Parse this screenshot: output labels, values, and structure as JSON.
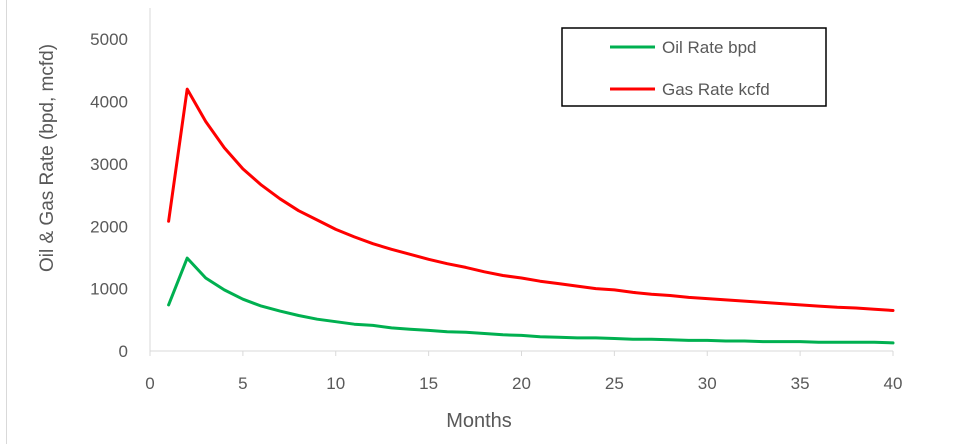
{
  "chart_data": {
    "type": "line",
    "title": "",
    "xlabel": "Months",
    "ylabel": "Oil & Gas Rate (bpd, mcfd)",
    "xlim": [
      0,
      40
    ],
    "ylim": [
      0,
      5500
    ],
    "xticks": [
      0,
      5,
      10,
      15,
      20,
      25,
      30,
      35,
      40
    ],
    "yticks": [
      0,
      1000,
      2000,
      3000,
      4000,
      5000
    ],
    "grid": false,
    "legend_position": "top-right",
    "x": [
      1,
      2,
      3,
      4,
      5,
      6,
      7,
      8,
      9,
      10,
      11,
      12,
      13,
      14,
      15,
      16,
      17,
      18,
      19,
      20,
      21,
      22,
      23,
      24,
      25,
      26,
      27,
      28,
      29,
      30,
      31,
      32,
      33,
      34,
      35,
      36,
      37,
      38,
      39,
      40
    ],
    "series": [
      {
        "name": "Oil Rate bpd",
        "color": "#00b050",
        "values": [
          740,
          1490,
          1170,
          980,
          830,
          720,
          640,
          570,
          510,
          470,
          430,
          410,
          370,
          350,
          330,
          310,
          300,
          280,
          260,
          250,
          230,
          220,
          210,
          210,
          200,
          190,
          190,
          180,
          170,
          170,
          160,
          160,
          150,
          150,
          150,
          140,
          140,
          140,
          140,
          130
        ]
      },
      {
        "name": "Gas Rate kcfd",
        "color": "#ff0000",
        "values": [
          2080,
          4200,
          3680,
          3260,
          2920,
          2660,
          2440,
          2250,
          2100,
          1950,
          1830,
          1720,
          1630,
          1550,
          1470,
          1400,
          1340,
          1270,
          1210,
          1170,
          1120,
          1080,
          1040,
          1000,
          980,
          940,
          910,
          890,
          860,
          840,
          820,
          800,
          780,
          760,
          740,
          720,
          700,
          690,
          670,
          650
        ]
      }
    ]
  }
}
